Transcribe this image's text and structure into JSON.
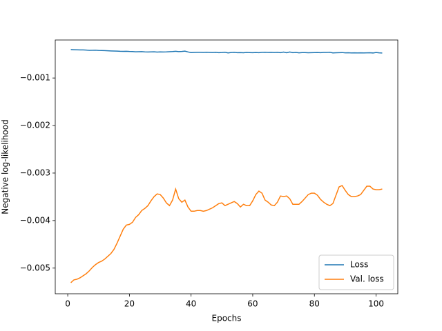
{
  "chart_data": {
    "type": "line",
    "xlabel": "Epochs",
    "ylabel": "Negative log-likelihood",
    "x": [
      1,
      2,
      3,
      4,
      5,
      6,
      7,
      8,
      9,
      10,
      11,
      12,
      13,
      14,
      15,
      16,
      17,
      18,
      19,
      20,
      21,
      22,
      23,
      24,
      25,
      26,
      27,
      28,
      29,
      30,
      31,
      32,
      33,
      34,
      35,
      36,
      37,
      38,
      39,
      40,
      41,
      42,
      43,
      44,
      45,
      46,
      47,
      48,
      49,
      50,
      51,
      52,
      53,
      54,
      55,
      56,
      57,
      58,
      59,
      60,
      61,
      62,
      63,
      64,
      65,
      66,
      67,
      68,
      69,
      70,
      71,
      72,
      73,
      74,
      75,
      76,
      77,
      78,
      79,
      80,
      81,
      82,
      83,
      84,
      85,
      86,
      87,
      88,
      89,
      90,
      91,
      92,
      93,
      94,
      95,
      96,
      97,
      98,
      99,
      100,
      101,
      102
    ],
    "series": [
      {
        "name": "Loss",
        "color": "#1f77b4",
        "values": [
          -0.000402,
          -0.000405,
          -0.000407,
          -0.000408,
          -0.000409,
          -0.000412,
          -0.000418,
          -0.000416,
          -0.000414,
          -0.00042,
          -0.000421,
          -0.000423,
          -0.000427,
          -0.00043,
          -0.000432,
          -0.000434,
          -0.000438,
          -0.00044,
          -0.000437,
          -0.000442,
          -0.000444,
          -0.000448,
          -0.000446,
          -0.000445,
          -0.00045,
          -0.000452,
          -0.00045,
          -0.000449,
          -0.000453,
          -0.000451,
          -0.000452,
          -0.00045,
          -0.000446,
          -0.000443,
          -0.000437,
          -0.000445,
          -0.000441,
          -0.000435,
          -0.000451,
          -0.000465,
          -0.000462,
          -0.00046,
          -0.000459,
          -0.000462,
          -0.000458,
          -0.000461,
          -0.000463,
          -0.00046,
          -0.000466,
          -0.000463,
          -0.000458,
          -0.000472,
          -0.000463,
          -0.00046,
          -0.000466,
          -0.000464,
          -0.000468,
          -0.000462,
          -0.000465,
          -0.000467,
          -0.000463,
          -0.000466,
          -0.00046,
          -0.000458,
          -0.000461,
          -0.000459,
          -0.000463,
          -0.00046,
          -0.000466,
          -0.000455,
          -0.000468,
          -0.000452,
          -0.000466,
          -0.000461,
          -0.00047,
          -0.000465,
          -0.000464,
          -0.000468,
          -0.000466,
          -0.000465,
          -0.000463,
          -0.000466,
          -0.000462,
          -0.000461,
          -0.000458,
          -0.000472,
          -0.000468,
          -0.000466,
          -0.000464,
          -0.00047,
          -0.000468,
          -0.000473,
          -0.00047,
          -0.000472,
          -0.000471,
          -0.000472,
          -0.00047,
          -0.000468,
          -0.000473,
          -0.000463,
          -0.00047,
          -0.000474
        ]
      },
      {
        "name": "Val. loss",
        "color": "#ff7f0e",
        "values": [
          -0.005307,
          -0.005248,
          -0.005234,
          -0.005204,
          -0.005161,
          -0.005117,
          -0.005058,
          -0.004985,
          -0.004927,
          -0.004883,
          -0.004854,
          -0.00481,
          -0.004752,
          -0.004693,
          -0.004606,
          -0.004474,
          -0.004328,
          -0.004182,
          -0.004095,
          -0.00408,
          -0.004036,
          -0.003934,
          -0.003876,
          -0.003788,
          -0.003745,
          -0.003686,
          -0.003584,
          -0.003496,
          -0.003438,
          -0.003453,
          -0.003526,
          -0.003628,
          -0.003686,
          -0.003569,
          -0.003336,
          -0.00354,
          -0.003613,
          -0.003569,
          -0.003715,
          -0.003803,
          -0.003803,
          -0.003788,
          -0.003788,
          -0.003803,
          -0.003788,
          -0.003759,
          -0.00373,
          -0.003686,
          -0.003642,
          -0.003628,
          -0.003686,
          -0.003657,
          -0.003628,
          -0.003599,
          -0.003642,
          -0.003715,
          -0.003657,
          -0.003686,
          -0.003686,
          -0.003584,
          -0.003453,
          -0.00338,
          -0.003423,
          -0.003569,
          -0.003613,
          -0.003672,
          -0.003686,
          -0.003613,
          -0.003482,
          -0.003496,
          -0.003482,
          -0.00354,
          -0.003657,
          -0.003657,
          -0.003657,
          -0.003599,
          -0.003526,
          -0.003453,
          -0.003423,
          -0.003423,
          -0.003467,
          -0.003555,
          -0.003613,
          -0.003657,
          -0.003686,
          -0.003642,
          -0.003467,
          -0.003292,
          -0.003263,
          -0.003365,
          -0.003453,
          -0.003496,
          -0.003496,
          -0.003482,
          -0.003453,
          -0.003365,
          -0.003277,
          -0.003277,
          -0.003336,
          -0.00335,
          -0.00335,
          -0.003336
        ]
      }
    ],
    "xlim": [
      -4.05,
      107.05
    ],
    "xticks": [
      0,
      20,
      40,
      60,
      80,
      100
    ],
    "ylim": [
      -0.00554,
      -0.0002
    ],
    "yticks": [
      {
        "value": -0.005,
        "label": "−0.005"
      },
      {
        "value": -0.004,
        "label": "−0.004"
      },
      {
        "value": -0.003,
        "label": "−0.003"
      },
      {
        "value": -0.002,
        "label": "−0.002"
      },
      {
        "value": -0.001,
        "label": "−0.001"
      }
    ],
    "legend": "lower right"
  }
}
